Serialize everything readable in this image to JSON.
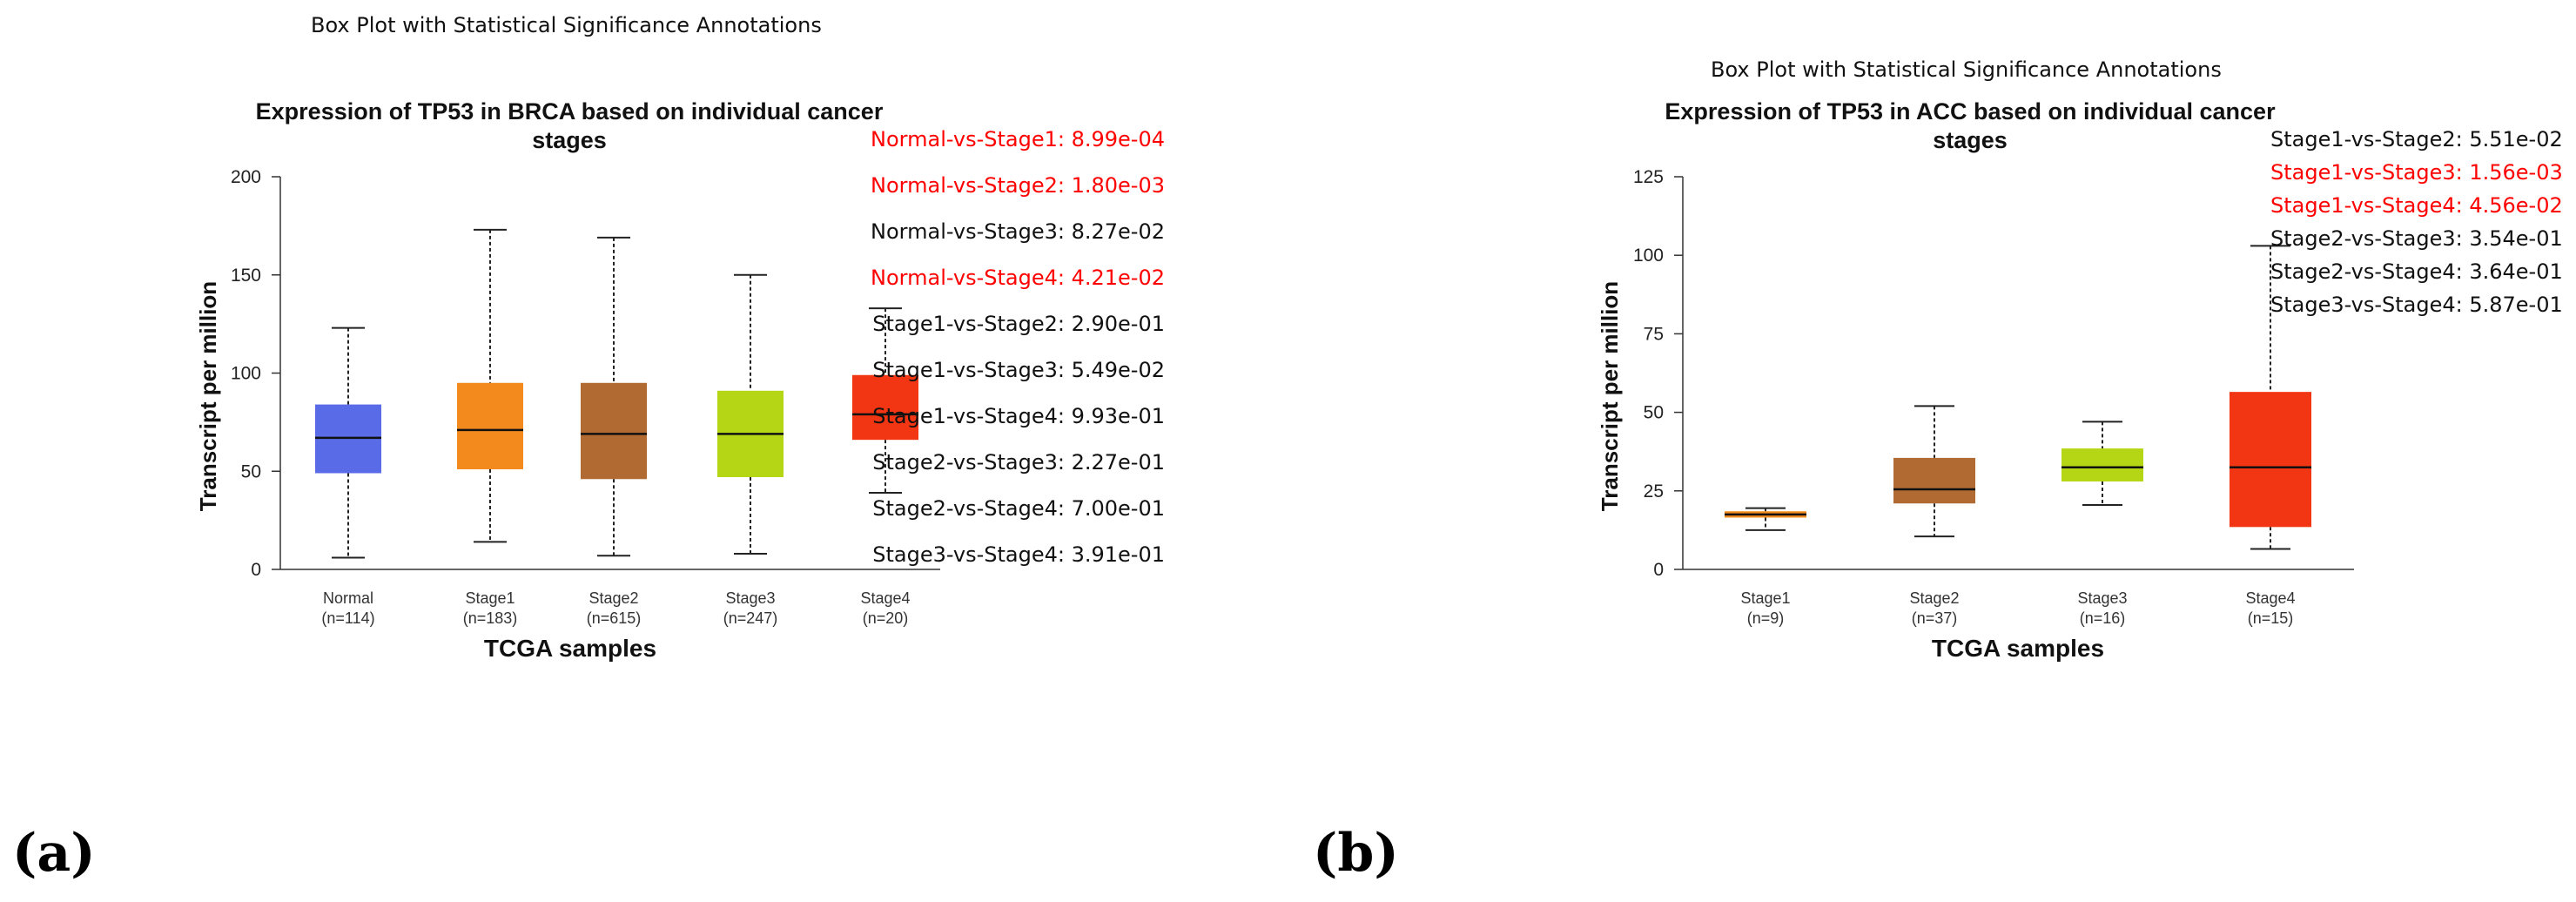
{
  "figure": {
    "panel_labels": [
      "(a)",
      "(b)"
    ]
  },
  "chart_data": [
    {
      "type": "box",
      "suptitle": "Box Plot with Statistical Significance Annotations",
      "title_line1": "Expression of TP53 in BRCA based on individual cancer",
      "title_line2": "stages",
      "xlabel": "TCGA samples",
      "ylabel": "Transcript per million",
      "ylim": [
        0,
        200
      ],
      "yticks": [
        "0",
        "50",
        "100",
        "150",
        "200"
      ],
      "categories": [
        "Normal",
        "Stage1",
        "Stage2",
        "Stage3",
        "Stage4"
      ],
      "counts": [
        "(n=114)",
        "(n=183)",
        "(n=615)",
        "(n=247)",
        "(n=20)"
      ],
      "colors": [
        "#5a6be8",
        "#f28a1e",
        "#b06a32",
        "#b4d614",
        "#f23512"
      ],
      "boxes": [
        {
          "min": 6,
          "q1": 49,
          "median": 67,
          "q3": 84,
          "max": 123
        },
        {
          "min": 14,
          "q1": 51,
          "median": 71,
          "q3": 95,
          "max": 173
        },
        {
          "min": 7,
          "q1": 46,
          "median": 69,
          "q3": 95,
          "max": 169
        },
        {
          "min": 8,
          "q1": 47,
          "median": 69,
          "q3": 91,
          "max": 150
        },
        {
          "min": 39,
          "q1": 66,
          "median": 79,
          "q3": 99,
          "max": 133
        }
      ],
      "annotations": [
        {
          "text": "Normal-vs-Stage1: 8.99e-04",
          "significant": true
        },
        {
          "text": "Normal-vs-Stage2: 1.80e-03",
          "significant": true
        },
        {
          "text": "Normal-vs-Stage3: 8.27e-02",
          "significant": false
        },
        {
          "text": "Normal-vs-Stage4: 4.21e-02",
          "significant": true
        },
        {
          "text": "Stage1-vs-Stage2: 2.90e-01",
          "significant": false
        },
        {
          "text": "Stage1-vs-Stage3: 5.49e-02",
          "significant": false
        },
        {
          "text": "Stage1-vs-Stage4: 9.93e-01",
          "significant": false
        },
        {
          "text": "Stage2-vs-Stage3: 2.27e-01",
          "significant": false
        },
        {
          "text": "Stage2-vs-Stage4: 7.00e-01",
          "significant": false
        },
        {
          "text": "Stage3-vs-Stage4: 3.91e-01",
          "significant": false
        }
      ],
      "sig_color": "#ff0000"
    },
    {
      "type": "box",
      "suptitle": "Box Plot with Statistical Significance Annotations",
      "title_line1": "Expression of TP53 in ACC based on individual cancer",
      "title_line2": "stages",
      "xlabel": "TCGA samples",
      "ylabel": "Transcript per million",
      "ylim": [
        0,
        125
      ],
      "yticks": [
        "0",
        "25",
        "50",
        "75",
        "100",
        "125"
      ],
      "categories": [
        "Stage1",
        "Stage2",
        "Stage3",
        "Stage4"
      ],
      "counts": [
        "(n=9)",
        "(n=37)",
        "(n=16)",
        "(n=15)"
      ],
      "colors": [
        "#f28a1e",
        "#b06a32",
        "#b4d614",
        "#f23512"
      ],
      "boxes": [
        {
          "min": 12.5,
          "q1": 16.5,
          "median": 17.5,
          "q3": 18.5,
          "max": 19.5
        },
        {
          "min": 10.5,
          "q1": 21,
          "median": 25.5,
          "q3": 35.5,
          "max": 52
        },
        {
          "min": 20.5,
          "q1": 28,
          "median": 32.5,
          "q3": 38.5,
          "max": 47
        },
        {
          "min": 6.5,
          "q1": 13.5,
          "median": 32.5,
          "q3": 56.5,
          "max": 103
        }
      ],
      "annotations": [
        {
          "text": "Stage1-vs-Stage2: 5.51e-02",
          "significant": false
        },
        {
          "text": "Stage1-vs-Stage3: 1.56e-03",
          "significant": true
        },
        {
          "text": "Stage1-vs-Stage4: 4.56e-02",
          "significant": true
        },
        {
          "text": "Stage2-vs-Stage3: 3.54e-01",
          "significant": false
        },
        {
          "text": "Stage2-vs-Stage4: 3.64e-01",
          "significant": false
        },
        {
          "text": "Stage3-vs-Stage4: 5.87e-01",
          "significant": false
        }
      ],
      "sig_color": "#ff0000"
    }
  ]
}
